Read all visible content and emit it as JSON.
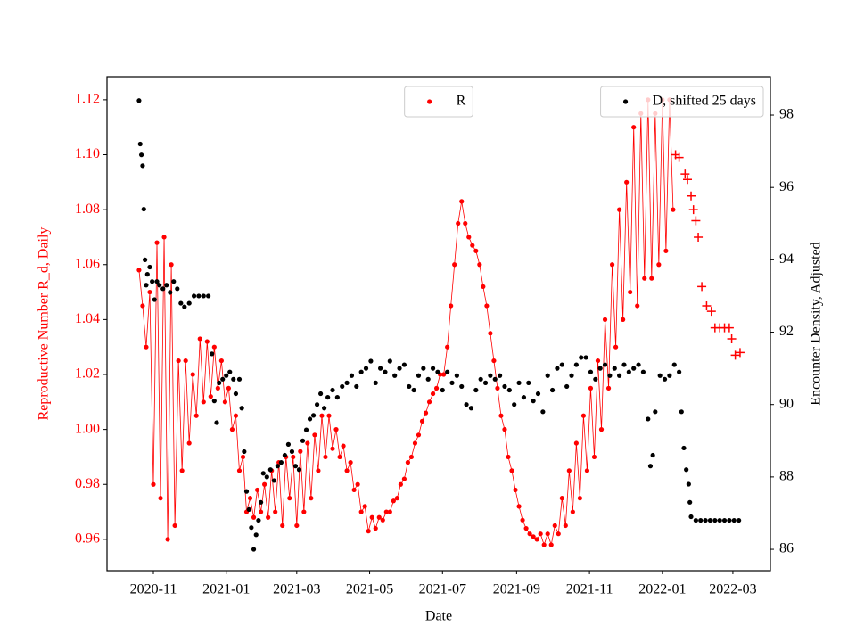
{
  "chart_data": {
    "type": "scatter",
    "xlabel": "Date",
    "ylabel": "Reproductive Number R_d, Daily",
    "y2label": "Encounter Density, Adjusted",
    "ylabel_color": "red",
    "xlim": [
      -38.8,
      516.4
    ],
    "ylim": [
      0.9486,
      1.1284
    ],
    "y2lim": [
      85.41,
      99.06
    ],
    "xticks": [
      {
        "value": 0,
        "label": "2020-11"
      },
      {
        "value": 61,
        "label": "2021-01"
      },
      {
        "value": 120,
        "label": "2021-03"
      },
      {
        "value": 181,
        "label": "2021-05"
      },
      {
        "value": 242,
        "label": "2021-07"
      },
      {
        "value": 304,
        "label": "2021-09"
      },
      {
        "value": 365,
        "label": "2021-11"
      },
      {
        "value": 426,
        "label": "2022-01"
      },
      {
        "value": 485,
        "label": "2022-03"
      }
    ],
    "yticks": [
      0.96,
      0.98,
      {
        "value": 1.0,
        "label": "1.00"
      },
      1.02,
      1.04,
      1.06,
      1.08,
      {
        "value": 1.1,
        "label": "1.10"
      },
      1.12
    ],
    "y2ticks": [
      86,
      88,
      90,
      92,
      94,
      96,
      98
    ],
    "series": [
      {
        "name": "R",
        "color": "red",
        "marker": "dot",
        "line": true,
        "legend_loc": "upper center",
        "x": [
          -12,
          -9,
          -6,
          -3,
          0,
          3,
          6,
          9,
          12,
          15,
          18,
          21,
          24,
          27,
          30,
          33,
          36,
          39,
          42,
          45,
          48,
          51,
          54,
          57,
          60,
          63,
          66,
          69,
          72,
          75,
          78,
          81,
          84,
          87,
          90,
          93,
          96,
          99,
          102,
          105,
          108,
          111,
          114,
          117,
          120,
          123,
          126,
          129,
          132,
          135,
          138,
          141,
          144,
          147,
          150,
          153,
          156,
          159,
          162,
          165,
          168,
          171,
          174,
          177,
          180,
          183,
          186,
          189,
          192,
          195,
          198,
          201,
          204,
          207,
          210,
          213,
          216,
          219,
          222,
          225,
          228,
          231,
          234,
          237,
          240,
          243,
          246,
          249,
          252,
          255,
          258,
          261,
          264,
          267,
          270,
          273,
          276,
          279,
          282,
          285,
          288,
          291,
          294,
          297,
          300,
          303,
          306,
          309,
          312,
          315,
          318,
          321,
          324,
          327,
          330,
          333,
          336,
          339,
          342,
          345,
          348,
          351,
          354,
          357,
          360,
          363,
          366,
          369,
          372,
          375,
          378,
          381,
          384,
          387,
          390,
          393,
          396,
          399,
          402,
          405,
          408,
          411,
          414,
          417,
          420,
          423,
          426,
          429,
          432,
          435
        ],
        "values": [
          1.058,
          1.045,
          1.03,
          1.05,
          0.98,
          1.068,
          0.975,
          1.07,
          0.96,
          1.06,
          0.965,
          1.025,
          0.985,
          1.025,
          0.995,
          1.02,
          1.005,
          1.033,
          1.01,
          1.032,
          1.012,
          1.03,
          1.015,
          1.025,
          1.01,
          1.015,
          1.0,
          1.005,
          0.985,
          0.99,
          0.97,
          0.975,
          0.968,
          0.978,
          0.97,
          0.98,
          0.968,
          0.985,
          0.97,
          0.988,
          0.965,
          0.99,
          0.975,
          0.99,
          0.965,
          0.992,
          0.97,
          0.995,
          0.975,
          0.998,
          0.985,
          1.005,
          0.99,
          1.005,
          0.993,
          1.0,
          0.99,
          0.994,
          0.985,
          0.988,
          0.978,
          0.98,
          0.97,
          0.972,
          0.963,
          0.968,
          0.964,
          0.968,
          0.967,
          0.97,
          0.97,
          0.974,
          0.975,
          0.98,
          0.982,
          0.988,
          0.99,
          0.995,
          0.998,
          1.003,
          1.006,
          1.01,
          1.013,
          1.015,
          1.02,
          1.02,
          1.03,
          1.045,
          1.06,
          1.075,
          1.083,
          1.075,
          1.07,
          1.067,
          1.065,
          1.06,
          1.052,
          1.045,
          1.035,
          1.025,
          1.015,
          1.005,
          1.0,
          0.99,
          0.985,
          0.978,
          0.972,
          0.967,
          0.964,
          0.962,
          0.961,
          0.96,
          0.962,
          0.958,
          0.962,
          0.958,
          0.965,
          0.962,
          0.975,
          0.965,
          0.985,
          0.97,
          0.995,
          0.975,
          1.005,
          0.985,
          1.015,
          0.99,
          1.025,
          1.0,
          1.04,
          1.015,
          1.06,
          1.03,
          1.08,
          1.04,
          1.09,
          1.05,
          1.11,
          1.045,
          1.115,
          1.055,
          1.12,
          1.055,
          1.115,
          1.06,
          1.12,
          1.065,
          1.12,
          1.08
        ]
      },
      {
        "color": "red",
        "marker": "plus",
        "x": [
          437,
          440,
          445,
          447,
          450,
          452,
          454,
          456,
          459,
          463,
          467,
          470,
          474,
          478,
          482,
          484,
          487,
          491
        ],
        "values": [
          1.1,
          1.099,
          1.093,
          1.091,
          1.085,
          1.08,
          1.076,
          1.07,
          1.052,
          1.045,
          1.043,
          1.037,
          1.037,
          1.037,
          1.037,
          1.033,
          1.027,
          1.028
        ]
      },
      {
        "name": "D, shifted 25 days",
        "color": "black",
        "axis": "y2",
        "marker": "dot",
        "legend_loc": "upper right",
        "x": [
          -12,
          -11,
          -10,
          -9,
          -8,
          -7,
          -6,
          -5,
          -3,
          -1,
          1,
          3,
          5,
          8,
          11,
          14,
          17,
          20,
          23,
          26,
          30,
          34,
          38,
          42,
          46,
          49,
          51,
          53,
          55,
          58,
          61,
          64,
          67,
          69,
          72,
          74,
          76,
          78,
          80,
          82,
          84,
          86,
          88,
          90,
          92,
          95,
          98,
          101,
          104,
          107,
          110,
          113,
          116,
          119,
          122,
          125,
          128,
          131,
          134,
          137,
          140,
          143,
          146,
          150,
          154,
          158,
          162,
          166,
          170,
          174,
          178,
          182,
          186,
          190,
          194,
          198,
          202,
          206,
          210,
          214,
          218,
          222,
          226,
          230,
          234,
          238,
          242,
          246,
          250,
          254,
          258,
          262,
          266,
          270,
          274,
          278,
          282,
          286,
          290,
          294,
          298,
          302,
          306,
          310,
          314,
          318,
          322,
          326,
          330,
          334,
          338,
          342,
          346,
          350,
          354,
          358,
          362,
          366,
          370,
          374,
          378,
          382,
          386,
          390,
          394,
          398,
          402,
          406,
          410,
          414,
          416,
          418,
          420,
          424,
          428,
          432,
          436,
          440,
          442,
          444,
          446,
          448,
          449,
          450,
          454,
          458,
          462,
          466,
          470,
          474,
          478,
          482,
          486,
          490
        ],
        "values": [
          98.4,
          97.2,
          96.9,
          96.6,
          95.4,
          94.0,
          93.3,
          93.6,
          93.8,
          93.4,
          92.9,
          93.4,
          93.3,
          93.2,
          93.3,
          93.1,
          93.4,
          93.2,
          92.8,
          92.7,
          92.8,
          93.0,
          93.0,
          93.0,
          93.0,
          91.4,
          90.1,
          89.5,
          90.6,
          90.7,
          90.8,
          90.9,
          90.7,
          90.3,
          90.7,
          89.9,
          88.7,
          87.6,
          87.1,
          86.6,
          86.0,
          86.4,
          86.8,
          87.3,
          88.1,
          88.0,
          88.2,
          87.9,
          88.3,
          88.4,
          88.6,
          88.9,
          88.7,
          88.3,
          88.2,
          89.0,
          89.3,
          89.6,
          89.7,
          90.0,
          90.3,
          89.9,
          90.2,
          90.4,
          90.2,
          90.5,
          90.6,
          90.8,
          90.5,
          90.9,
          91.0,
          91.2,
          90.6,
          91.0,
          90.9,
          91.2,
          90.8,
          91.0,
          91.1,
          90.5,
          90.4,
          90.8,
          91.0,
          90.7,
          91.0,
          90.9,
          90.4,
          90.9,
          90.6,
          90.8,
          90.5,
          90.0,
          89.9,
          90.4,
          90.7,
          90.6,
          90.8,
          90.7,
          90.8,
          90.5,
          90.4,
          90.0,
          90.6,
          90.2,
          90.6,
          90.1,
          90.3,
          89.8,
          90.8,
          90.4,
          91.0,
          91.1,
          90.5,
          90.8,
          91.1,
          91.3,
          91.3,
          90.9,
          90.7,
          91.0,
          91.1,
          90.8,
          91.0,
          90.8,
          91.1,
          90.9,
          91.0,
          91.1,
          90.9,
          89.6,
          88.3,
          88.6,
          89.8,
          90.8,
          90.7,
          90.8,
          91.1,
          90.9,
          89.8,
          88.8,
          88.2,
          87.8,
          87.3,
          86.9,
          86.8,
          86.8,
          86.8,
          86.8,
          86.8,
          86.8,
          86.8,
          86.8,
          86.8,
          86.8
        ]
      }
    ]
  }
}
